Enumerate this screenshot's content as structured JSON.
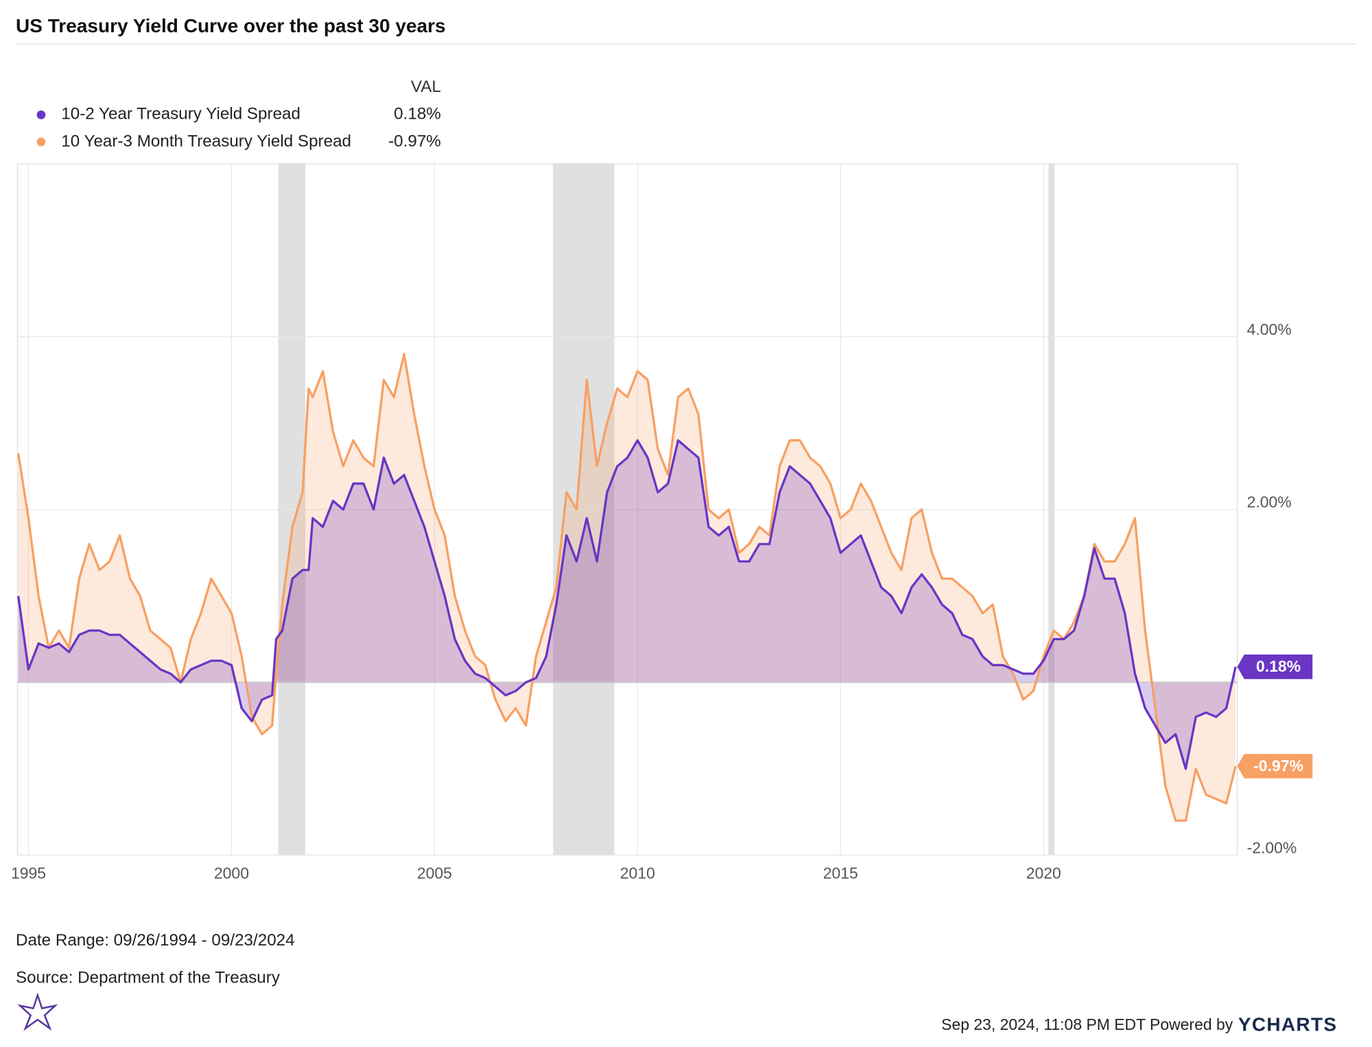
{
  "chart_data": {
    "type": "area",
    "title": "US Treasury Yield Curve over the past 30 years",
    "legend_value_header": "VAL",
    "date_range": "Date Range: 09/26/1994 - 09/23/2024",
    "source": "Source: Department of the Treasury",
    "timestamp": "Sep 23, 2024, 11:08 PM EDT Powered by",
    "brand": "YCHARTS",
    "xlim": [
      1994.73,
      2024.77
    ],
    "xticks": [
      1995,
      2000,
      2005,
      2010,
      2015,
      2020
    ],
    "ylim": [
      -2,
      6
    ],
    "yticks": [
      {
        "value": 4,
        "label": "4.00%"
      },
      {
        "value": 2,
        "label": "2.00%"
      },
      {
        "value": -2,
        "label": "-2.00%"
      }
    ],
    "grid": true,
    "recessions": [
      [
        2001.15,
        2001.82
      ],
      [
        2007.92,
        2009.43
      ],
      [
        2020.12,
        2020.27
      ]
    ],
    "x": [
      1994.75,
      1995,
      1995.25,
      1995.5,
      1995.75,
      1996,
      1996.25,
      1996.5,
      1996.75,
      1997,
      1997.25,
      1997.5,
      1997.75,
      1998,
      1998.25,
      1998.5,
      1998.75,
      1999,
      1999.25,
      1999.5,
      1999.75,
      2000,
      2000.25,
      2000.5,
      2000.75,
      2001,
      2001.1,
      2001.25,
      2001.5,
      2001.75,
      2001.9,
      2002,
      2002.25,
      2002.5,
      2002.75,
      2003,
      2003.25,
      2003.5,
      2003.75,
      2004,
      2004.25,
      2004.5,
      2004.75,
      2005,
      2005.25,
      2005.5,
      2005.75,
      2006,
      2006.25,
      2006.5,
      2006.75,
      2007,
      2007.25,
      2007.5,
      2007.75,
      2008,
      2008.25,
      2008.5,
      2008.75,
      2009,
      2009.25,
      2009.5,
      2009.75,
      2010,
      2010.25,
      2010.5,
      2010.75,
      2011,
      2011.25,
      2011.5,
      2011.75,
      2012,
      2012.25,
      2012.5,
      2012.75,
      2013,
      2013.25,
      2013.5,
      2013.75,
      2014,
      2014.25,
      2014.5,
      2014.75,
      2015,
      2015.25,
      2015.5,
      2015.75,
      2016,
      2016.25,
      2016.5,
      2016.75,
      2017,
      2017.25,
      2017.5,
      2017.75,
      2018,
      2018.25,
      2018.5,
      2018.75,
      2019,
      2019.25,
      2019.5,
      2019.75,
      2020,
      2020.25,
      2020.5,
      2020.75,
      2021,
      2021.25,
      2021.5,
      2021.75,
      2022,
      2022.25,
      2022.5,
      2022.75,
      2023,
      2023.25,
      2023.5,
      2023.75,
      2024,
      2024.25,
      2024.5,
      2024.73
    ],
    "series": [
      {
        "name": "10 Year-3 Month Treasury Yield Spread",
        "color": "#f7a064",
        "last_value_label": "-0.97%",
        "values": [
          2.65,
          1.9,
          1.0,
          0.4,
          0.6,
          0.4,
          1.2,
          1.6,
          1.3,
          1.4,
          1.7,
          1.2,
          1.0,
          0.6,
          0.5,
          0.4,
          0.0,
          0.5,
          0.8,
          1.2,
          1.0,
          0.8,
          0.3,
          -0.4,
          -0.6,
          -0.5,
          0.1,
          0.9,
          1.8,
          2.2,
          3.4,
          3.3,
          3.6,
          2.9,
          2.5,
          2.8,
          2.6,
          2.5,
          3.5,
          3.3,
          3.8,
          3.1,
          2.5,
          2.0,
          1.7,
          1.0,
          0.6,
          0.3,
          0.2,
          -0.2,
          -0.45,
          -0.3,
          -0.5,
          0.3,
          0.7,
          1.1,
          2.2,
          2.0,
          3.5,
          2.5,
          3.0,
          3.4,
          3.3,
          3.6,
          3.5,
          2.7,
          2.4,
          3.3,
          3.4,
          3.1,
          2.0,
          1.9,
          2.0,
          1.5,
          1.6,
          1.8,
          1.7,
          2.5,
          2.8,
          2.8,
          2.6,
          2.5,
          2.3,
          1.9,
          2.0,
          2.3,
          2.1,
          1.8,
          1.5,
          1.3,
          1.9,
          2.0,
          1.5,
          1.2,
          1.2,
          1.1,
          1.0,
          0.8,
          0.9,
          0.3,
          0.1,
          -0.2,
          -0.1,
          0.3,
          0.6,
          0.5,
          0.7,
          1.0,
          1.6,
          1.4,
          1.4,
          1.6,
          1.9,
          0.6,
          -0.3,
          -1.2,
          -1.6,
          -1.6,
          -1.0,
          -1.3,
          -1.35,
          -1.4,
          -0.97
        ]
      },
      {
        "name": "10-2 Year Treasury Yield Spread",
        "color": "#6a35c4",
        "last_value_label": "0.18%",
        "values": [
          1.0,
          0.15,
          0.45,
          0.4,
          0.45,
          0.35,
          0.55,
          0.6,
          0.6,
          0.55,
          0.55,
          0.45,
          0.35,
          0.25,
          0.15,
          0.1,
          0.0,
          0.15,
          0.2,
          0.25,
          0.25,
          0.2,
          -0.3,
          -0.45,
          -0.2,
          -0.15,
          0.5,
          0.6,
          1.2,
          1.3,
          1.3,
          1.9,
          1.8,
          2.1,
          2.0,
          2.3,
          2.3,
          2.0,
          2.6,
          2.3,
          2.4,
          2.1,
          1.8,
          1.4,
          1.0,
          0.5,
          0.25,
          0.1,
          0.05,
          -0.05,
          -0.15,
          -0.1,
          0.0,
          0.05,
          0.3,
          0.9,
          1.7,
          1.4,
          1.9,
          1.4,
          2.2,
          2.5,
          2.6,
          2.8,
          2.6,
          2.2,
          2.3,
          2.8,
          2.7,
          2.6,
          1.8,
          1.7,
          1.8,
          1.4,
          1.4,
          1.6,
          1.6,
          2.2,
          2.5,
          2.4,
          2.3,
          2.1,
          1.9,
          1.5,
          1.6,
          1.7,
          1.4,
          1.1,
          1.0,
          0.8,
          1.1,
          1.25,
          1.1,
          0.9,
          0.8,
          0.55,
          0.5,
          0.3,
          0.2,
          0.2,
          0.15,
          0.1,
          0.1,
          0.25,
          0.5,
          0.5,
          0.6,
          1.0,
          1.55,
          1.2,
          1.2,
          0.8,
          0.1,
          -0.3,
          -0.5,
          -0.7,
          -0.6,
          -1.0,
          -0.4,
          -0.35,
          -0.4,
          -0.3,
          0.18
        ]
      }
    ],
    "legend_order": [
      1,
      0
    ]
  }
}
